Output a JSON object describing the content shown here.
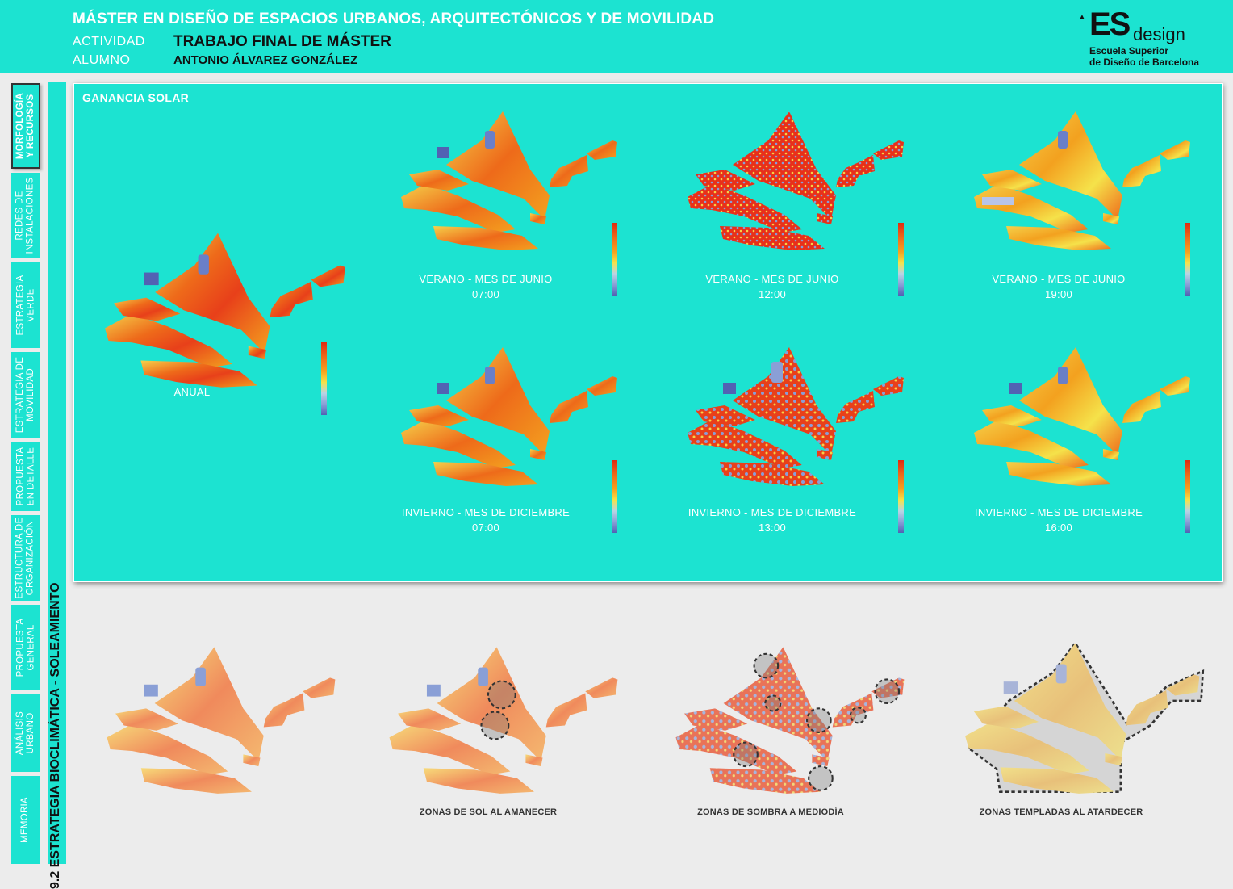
{
  "header": {
    "title": "MÁSTER EN DISEÑO DE ESPACIOS URBANOS, ARQUITECTÓNICOS Y DE MOVILIDAD",
    "activity_label": "ACTIVIDAD",
    "activity_value": "TRABAJO FINAL DE MÁSTER",
    "student_label": "ALUMNO",
    "student_value": "ANTONIO ÁLVAREZ GONZÁLEZ"
  },
  "logo": {
    "es": "ES",
    "design": "design",
    "line1": "Escuela Superior",
    "line2": "de Diseño de Barcelona"
  },
  "sidebar": {
    "items": [
      {
        "label1": "MORFOLOGÍA",
        "label2": "Y RECURSOS"
      },
      {
        "label1": "REDES DE",
        "label2": "INSTALACIONES"
      },
      {
        "label1": "ESTRATEGIA",
        "label2": "VERDE"
      },
      {
        "label1": "ESTRATEGIA DE",
        "label2": "MOVILIDAD"
      },
      {
        "label1": "PROPUESTA",
        "label2": "EN DETALLE"
      },
      {
        "label1": "ESTRUCTURA DE",
        "label2": "ORGANIZACIÓN"
      },
      {
        "label1": "PROPUESTA",
        "label2": "GENERAL"
      },
      {
        "label1": "ANÁLISIS",
        "label2": "URBANO"
      },
      {
        "label1": "MEMORIA",
        "label2": ""
      }
    ],
    "section": "9.2 ESTRATEGIA BIOCLIMÁTICA - SOLEAMIENTO"
  },
  "panel": {
    "title": "GANANCIA SOLAR",
    "annual_caption": "ANUAL",
    "maps": [
      {
        "line1": "VERANO - MES DE JUNIO",
        "line2": "07:00"
      },
      {
        "line1": "VERANO - MES DE JUNIO",
        "line2": "12:00"
      },
      {
        "line1": "VERANO - MES DE JUNIO",
        "line2": "19:00"
      },
      {
        "line1": "INVIERNO - MES DE DICIEMBRE",
        "line2": "07:00"
      },
      {
        "line1": "INVIERNO - MES DE DICIEMBRE",
        "line2": "13:00"
      },
      {
        "line1": "INVIERNO - MES DE DICIEMBRE",
        "line2": "16:00"
      }
    ]
  },
  "bottom": {
    "captions": [
      "ZONAS DE SOL AL AMANECER",
      "ZONAS DE SOMBRA A MEDIODÍA",
      "ZONAS TEMPLADAS AL ATARDECER"
    ]
  },
  "colors": {
    "accent": "#1ce3d1",
    "hot": "#e8401a",
    "warm": "#f3a11f",
    "mild": "#f5e24a",
    "cool": "#8a9fd6",
    "cold": "#5262b3"
  }
}
